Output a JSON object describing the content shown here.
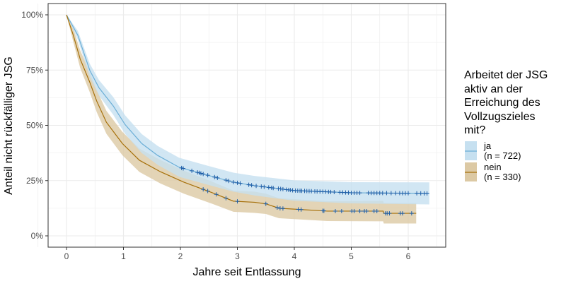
{
  "chart_data": {
    "type": "line",
    "subtype": "kaplan-meier survival with confidence bands and censor marks",
    "xlabel": "Jahre seit Entlassung",
    "ylabel": "Anteil nicht rückfälliger JSG",
    "xlim": [
      -0.3,
      6.7
    ],
    "ylim": [
      -5,
      105
    ],
    "x_ticks": [
      "0",
      "1",
      "2",
      "3",
      "4",
      "5",
      "6"
    ],
    "y_ticks": [
      "0%",
      "25%",
      "50%",
      "75%",
      "100%"
    ],
    "grid": true,
    "legend": {
      "position": "right",
      "title": [
        "Arbeitet der JSG",
        "aktiv an der",
        "Erreichung des",
        "Vollzugszieles",
        "mit?"
      ],
      "entries": [
        {
          "label1": "ja",
          "label2": "(n = 722)"
        },
        {
          "label1": "nein",
          "label2": "(n = 330)"
        }
      ]
    },
    "series": [
      {
        "name": "ja",
        "line_color": "#6baed6",
        "band_color": "#c6e0f0",
        "censor_color": "#1f5fa8",
        "t": [
          0,
          0.2,
          0.41,
          0.57,
          0.82,
          1.03,
          1.32,
          1.6,
          1.98,
          2.47,
          2.93,
          3.3,
          4.0,
          5.0,
          6.37
        ],
        "pct": [
          100,
          90.7,
          74.8,
          67,
          58.8,
          50.3,
          41.8,
          36.4,
          31,
          27.5,
          24.3,
          22.7,
          20.5,
          19.5,
          19.2
        ],
        "ci_halfwidth": [
          0,
          2,
          3,
          3.5,
          4,
          4.2,
          4.3,
          4.3,
          4.3,
          4.3,
          4.3,
          4.4,
          4.6,
          4.8,
          5
        ],
        "censor_t": [
          2.02,
          2.05,
          2.2,
          2.3,
          2.33,
          2.36,
          2.4,
          2.48,
          2.6,
          2.65,
          2.8,
          2.85,
          2.93,
          3.0,
          3.05,
          3.2,
          3.25,
          3.33,
          3.42,
          3.47,
          3.55,
          3.6,
          3.63,
          3.72,
          3.76,
          3.8,
          3.86,
          3.9,
          3.93,
          3.97,
          4.02,
          4.06,
          4.1,
          4.13,
          4.18,
          4.22,
          4.26,
          4.3,
          4.36,
          4.4,
          4.45,
          4.5,
          4.55,
          4.6,
          4.64,
          4.7,
          4.8,
          4.85,
          4.9,
          4.95,
          5.0,
          5.05,
          5.1,
          5.15,
          5.3,
          5.35,
          5.4,
          5.45,
          5.5,
          5.55,
          5.62,
          5.7,
          5.78,
          5.85,
          5.9,
          5.95,
          6.0,
          6.15,
          6.22,
          6.28,
          6.33
        ]
      },
      {
        "name": "nein",
        "line_color": "#a6700a",
        "band_color": "#dcc9a4",
        "censor_color": "#1f5fa8",
        "t": [
          0,
          0.12,
          0.24,
          0.41,
          0.53,
          0.7,
          0.98,
          1.28,
          1.65,
          2.06,
          2.56,
          2.93,
          3.3,
          3.5,
          3.73,
          4.58,
          5.56,
          5.57,
          6.14
        ],
        "pct": [
          100,
          90.7,
          80,
          69.4,
          61,
          51.4,
          41.8,
          34.2,
          29,
          24.3,
          19.5,
          15.7,
          15.2,
          14.5,
          12.5,
          11.2,
          11.2,
          10.2,
          10.2
        ],
        "ci_halfwidth": [
          0,
          3,
          4,
          4.5,
          5,
          5.2,
          5.3,
          5.3,
          5.3,
          5.2,
          5,
          4.8,
          4.8,
          4.6,
          4.5,
          4.5,
          4.6,
          4.6,
          4.6
        ],
        "censor_t": [
          2.4,
          2.48,
          2.63,
          2.8,
          3.0,
          3.5,
          3.7,
          3.75,
          3.8,
          4.07,
          4.12,
          4.5,
          4.52,
          4.72,
          4.83,
          5.01,
          5.05,
          5.15,
          5.23,
          5.27,
          5.4,
          5.45,
          5.6,
          5.63,
          5.67,
          5.86,
          5.9,
          6.06
        ]
      }
    ]
  }
}
